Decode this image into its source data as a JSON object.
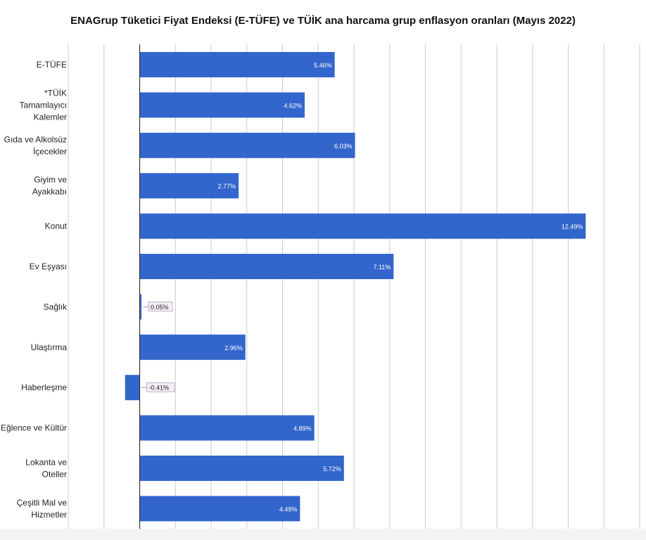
{
  "colors": {
    "bar": "#3366cc",
    "grid": "#cccccc",
    "axis": "#333333",
    "label_on_bar": "#ffffff",
    "label_outside": "#222222",
    "outside_box_fill": "#f3eef5",
    "outside_box_stroke": "#b39fc0"
  },
  "chart_data": {
    "type": "bar",
    "orientation": "horizontal",
    "title": "ENAGrup Tüketici Fiyat Endeksi (E-TÜFE) ve TÜİK ana harcama grup enflasyon oranları (Mayıs 2022)",
    "xlim": [
      -2,
      14
    ],
    "grid": true,
    "categories": [
      "E-TÜFE",
      "*TÜİK Tamamlayıcı Kalemler",
      "Gıda ve Alkolsüz İçecekler",
      "Giyim ve Ayakkabı",
      "Konut",
      "Ev Eşyası",
      "Sağlık",
      "Ulaştırma",
      "Haberleşme",
      "Eğlence ve Kültür",
      "Lokanta ve Oteller",
      "Çeşitli Mal ve Hizmetler"
    ],
    "category_lines": [
      [
        "E-TÜFE"
      ],
      [
        "*TÜİK",
        "Tamamlayıcı",
        "Kalemler"
      ],
      [
        "Gıda ve Alkolsüz",
        "İçecekler"
      ],
      [
        "Giyim ve",
        "Ayakkabı"
      ],
      [
        "Konut"
      ],
      [
        "Ev Eşyası"
      ],
      [
        "Sağlık"
      ],
      [
        "Ulaştırma"
      ],
      [
        "Haberleşme"
      ],
      [
        "Eğlence ve Kültür"
      ],
      [
        "Lokanta ve",
        "Oteller"
      ],
      [
        "Çeşitli Mal ve",
        "Hizmetler"
      ]
    ],
    "values": [
      5.46,
      4.62,
      6.03,
      2.77,
      12.49,
      7.11,
      0.05,
      2.96,
      -0.41,
      4.89,
      5.72,
      4.49
    ],
    "value_labels": [
      "5.46%",
      "4.62%",
      "6.03%",
      "2.77%",
      "12.49%",
      "7.11%",
      "0.05%",
      "2.96%",
      "-0.41%",
      "4.89%",
      "5.72%",
      "4.49%"
    ]
  }
}
